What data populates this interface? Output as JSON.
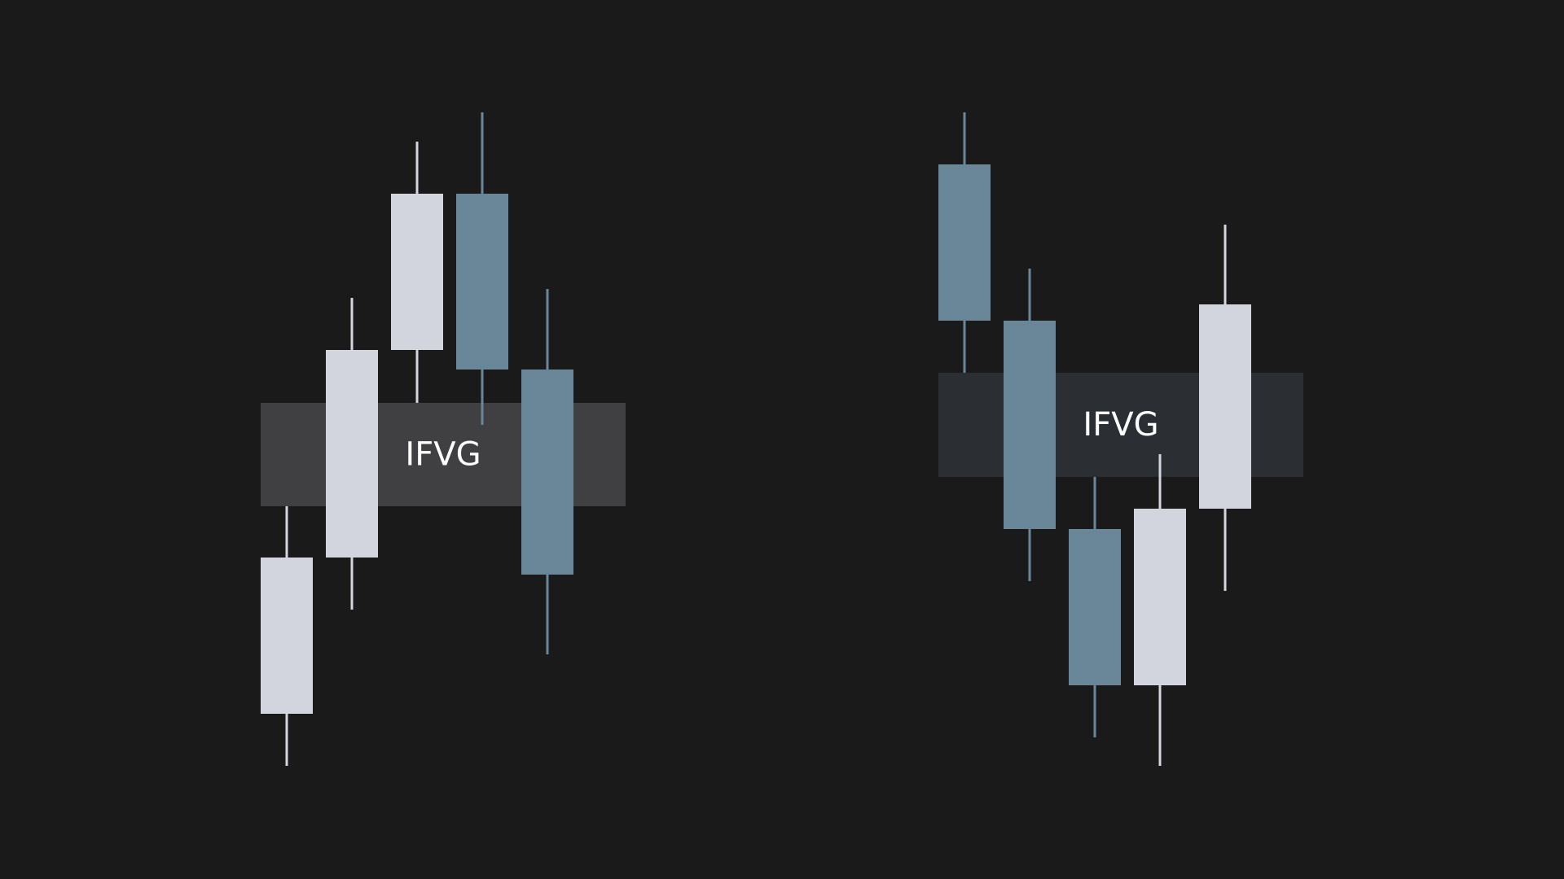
{
  "colors": {
    "background": "#1a1a1a",
    "bullish": "#d2d5de",
    "bearish": "#6a8799"
  },
  "chart_data": [
    {
      "type": "candlestick",
      "direction": "bullish-inversion",
      "y_range": [
        0,
        1080
      ],
      "zone": {
        "label": "IFVG",
        "low": 458,
        "high": 585,
        "color": "#404042"
      },
      "candles": [
        {
          "open": 203,
          "close": 395,
          "high": 458,
          "low": 139,
          "color": "bullish"
        },
        {
          "open": 395,
          "close": 650,
          "high": 714,
          "low": 331,
          "color": "bullish"
        },
        {
          "open": 650,
          "close": 842,
          "high": 906,
          "low": 585,
          "color": "bullish"
        },
        {
          "open": 842,
          "close": 626,
          "high": 942,
          "low": 558,
          "color": "bearish"
        },
        {
          "open": 626,
          "close": 374,
          "high": 725,
          "low": 276,
          "color": "bearish"
        }
      ]
    },
    {
      "type": "candlestick",
      "direction": "bearish-inversion",
      "y_range": [
        0,
        1080
      ],
      "zone": {
        "label": "IFVG",
        "low": 494,
        "high": 622,
        "color": "#2b2f34"
      },
      "candles": [
        {
          "open": 878,
          "close": 686,
          "high": 942,
          "low": 622,
          "color": "bearish"
        },
        {
          "open": 686,
          "close": 430,
          "high": 750,
          "low": 366,
          "color": "bearish"
        },
        {
          "open": 430,
          "close": 238,
          "high": 494,
          "low": 174,
          "color": "bearish"
        },
        {
          "open": 238,
          "close": 455,
          "high": 522,
          "low": 139,
          "color": "bullish"
        },
        {
          "open": 455,
          "close": 706,
          "high": 804,
          "low": 354,
          "color": "bullish"
        }
      ]
    }
  ]
}
